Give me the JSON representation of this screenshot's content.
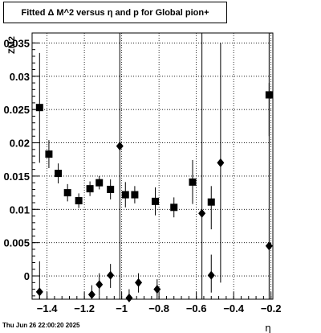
{
  "title": "Fitted Δ M^2 versus η and p for Global pion+",
  "timestamp": "Thu Jun 26 22:00:20 2025",
  "chart_data": {
    "type": "scatter",
    "xlabel": "η",
    "ylabel": "ZM2",
    "xlim": [
      -1.48,
      -0.19
    ],
    "ylim": [
      -0.0035,
      0.0365
    ],
    "xticks": [
      -1.4,
      -1.2,
      -1.0,
      -0.8,
      -0.6,
      -0.4,
      -0.2
    ],
    "xtick_labels": [
      "−1.4",
      "−1.2",
      "−1",
      "−0.8",
      "−0.6",
      "−0.4",
      "−0.2"
    ],
    "yticks": [
      0,
      0.005,
      0.01,
      0.015,
      0.02,
      0.025,
      0.03,
      0.035
    ],
    "ytick_labels": [
      "0",
      "0.005",
      "0.01",
      "0.015",
      "0.02",
      "0.025",
      "0.03",
      "0.035"
    ],
    "grid": true,
    "series": [
      {
        "marker": "square",
        "points": [
          {
            "x": -1.44,
            "y": 0.0253,
            "lo": 0.017,
            "hi": 0.0335
          },
          {
            "x": -1.39,
            "y": 0.0183,
            "lo": 0.0162,
            "hi": 0.0204
          },
          {
            "x": -1.34,
            "y": 0.0154,
            "lo": 0.0139,
            "hi": 0.0169
          },
          {
            "x": -1.29,
            "y": 0.0125,
            "lo": 0.0112,
            "hi": 0.0138
          },
          {
            "x": -1.23,
            "y": 0.0113,
            "lo": 0.0102,
            "hi": 0.0124
          },
          {
            "x": -1.17,
            "y": 0.0131,
            "lo": 0.012,
            "hi": 0.0142
          },
          {
            "x": -1.12,
            "y": 0.014,
            "lo": 0.013,
            "hi": 0.015
          },
          {
            "x": -1.06,
            "y": 0.013,
            "lo": 0.0115,
            "hi": 0.0145
          },
          {
            "x": -0.98,
            "y": 0.0122,
            "lo": 0.0103,
            "hi": 0.0141
          },
          {
            "x": -0.93,
            "y": 0.0122,
            "lo": 0.0109,
            "hi": 0.0135
          },
          {
            "x": -0.82,
            "y": 0.0112,
            "lo": 0.0091,
            "hi": 0.0133
          },
          {
            "x": -0.72,
            "y": 0.0103,
            "lo": 0.0088,
            "hi": 0.0118
          },
          {
            "x": -0.62,
            "y": 0.0141,
            "lo": 0.0108,
            "hi": 0.0174
          },
          {
            "x": -0.52,
            "y": 0.0111,
            "lo": 0.007,
            "hi": 0.0135
          },
          {
            "x": -0.21,
            "y": 0.0272,
            "lo": 0.021,
            "hi": 0.029
          }
        ]
      },
      {
        "marker": "diamond",
        "points": [
          {
            "x": -1.44,
            "y": -0.0024,
            "lo": -0.0035,
            "hi": 0.0022
          },
          {
            "x": -1.16,
            "y": -0.0028,
            "lo": -0.0035,
            "hi": -0.0014
          },
          {
            "x": -1.12,
            "y": -0.0013,
            "lo": -0.003,
            "hi": 0.0004
          },
          {
            "x": -1.06,
            "y": 0.0001,
            "lo": -0.0018,
            "hi": 0.0018
          },
          {
            "x": -1.01,
            "y": 0.0195,
            "lo": -0.0035,
            "hi": 0.0365
          },
          {
            "x": -0.96,
            "y": -0.0033,
            "lo": -0.0035,
            "hi": -0.002
          },
          {
            "x": -0.91,
            "y": -0.001,
            "lo": -0.0025,
            "hi": 0.0004
          },
          {
            "x": -0.81,
            "y": -0.002,
            "lo": -0.0035,
            "hi": -0.0005
          },
          {
            "x": -0.57,
            "y": 0.0094,
            "lo": -0.0035,
            "hi": 0.0365
          },
          {
            "x": -0.52,
            "y": 0.0001,
            "lo": -0.0025,
            "hi": 0.0032
          },
          {
            "x": -0.47,
            "y": 0.017,
            "lo": -0.001,
            "hi": 0.035
          },
          {
            "x": -0.21,
            "y": 0.0045,
            "lo": -0.0035,
            "hi": 0.0365
          }
        ]
      }
    ]
  }
}
